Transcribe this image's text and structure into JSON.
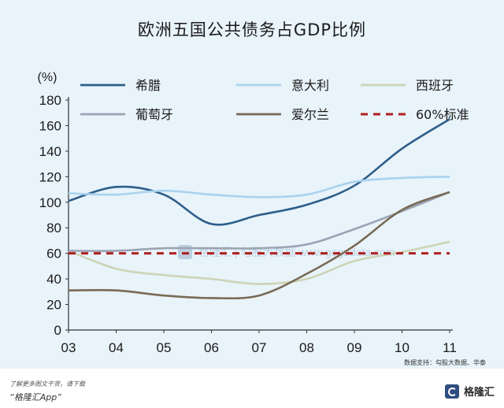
{
  "title": "欧洲五国公共债务占GDP比例",
  "source": "数据支持：勾股大数据、华泰",
  "watermark": "格隆汇 | 勾股大数据 www.gogudata.com",
  "footer": {
    "line1": "了解更多图文干货，请下载",
    "line2": "“格隆汇App”",
    "brand": "格隆汇"
  },
  "chart_data": {
    "type": "line",
    "ylabel": "(%)",
    "ylim": [
      0,
      180
    ],
    "yticks": [
      "0",
      "20",
      "40",
      "60",
      "80",
      "100",
      "120",
      "140",
      "160",
      "180"
    ],
    "x": [
      "03",
      "04",
      "05",
      "06",
      "07",
      "08",
      "09",
      "10",
      "11"
    ],
    "grid": false,
    "legend_position": "top",
    "series": [
      {
        "name": "希腊",
        "color": "#2e5e8a",
        "dash": false,
        "values": [
          101,
          112,
          106,
          83,
          90,
          98,
          113,
          142,
          165
        ]
      },
      {
        "name": "意大利",
        "color": "#a9d3ee",
        "dash": false,
        "values": [
          107,
          106,
          109,
          106,
          104,
          106,
          116,
          119,
          120
        ]
      },
      {
        "name": "西班牙",
        "color": "#cdd3b5",
        "dash": false,
        "values": [
          62,
          48,
          43,
          40,
          36,
          40,
          54,
          61,
          69
        ]
      },
      {
        "name": "葡萄牙",
        "color": "#9ba4b4",
        "dash": false,
        "values": [
          62,
          62,
          64,
          64,
          64,
          67,
          79,
          93,
          108
        ]
      },
      {
        "name": "爱尔兰",
        "color": "#7a6a55",
        "dash": false,
        "values": [
          31,
          31,
          27,
          25,
          27,
          44,
          66,
          94,
          108
        ]
      },
      {
        "name": "60%标准",
        "color": "#b01f1f",
        "dash": true,
        "values": [
          60,
          60,
          60,
          60,
          60,
          60,
          60,
          60,
          60
        ]
      }
    ]
  }
}
